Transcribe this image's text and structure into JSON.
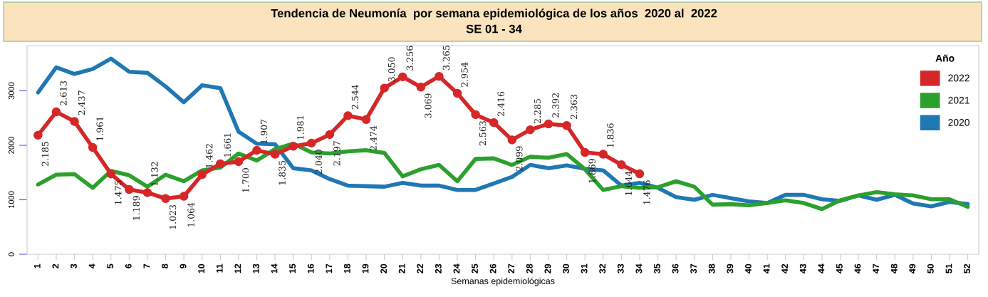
{
  "chart_data": {
    "type": "line",
    "title": "Tendencia de Neumonía  por semana epidemiológica de los años  2020 al  2022",
    "subtitle": "SE 01 - 34",
    "xlabel": "Semanas epidemiológicas",
    "legend_title": "Año",
    "legend": "top right",
    "grid": false,
    "line_style": "solid",
    "categories": [
      "1",
      "2",
      "3",
      "4",
      "5",
      "6",
      "7",
      "8",
      "9",
      "10",
      "11",
      "12",
      "13",
      "14",
      "15",
      "16",
      "17",
      "18",
      "19",
      "20",
      "21",
      "22",
      "23",
      "24",
      "25",
      "26",
      "27",
      "28",
      "29",
      "30",
      "31",
      "32",
      "33",
      "34",
      "35",
      "36",
      "37",
      "38",
      "39",
      "40",
      "41",
      "42",
      "43",
      "44",
      "45",
      "46",
      "47",
      "48",
      "49",
      "50",
      "51",
      "52"
    ],
    "ylim": [
      0,
      3830
    ],
    "yticks": [
      0,
      1000,
      2000,
      3000
    ],
    "series": [
      {
        "name": "2022",
        "color": "#d62728",
        "marker": "circle",
        "values": [
          2185,
          2613,
          2437,
          1961,
          1475,
          1189,
          1132,
          1023,
          1064,
          1462,
          1661,
          1700,
          1907,
          1835,
          1981,
          2040,
          2197,
          2544,
          2474,
          3050,
          3256,
          3069,
          3265,
          2954,
          2563,
          2416,
          2099,
          2285,
          2392,
          2363,
          1869,
          1836,
          1644,
          1476,
          null,
          null,
          null,
          null,
          null,
          null,
          null,
          null,
          null,
          null,
          null,
          null,
          null,
          null,
          null,
          null,
          null,
          null
        ],
        "value_labels": [
          "2.185",
          "2.613",
          "2.437",
          "1.961",
          "1.475",
          "1.189",
          "1.132",
          "1.023",
          "1.064",
          "1.462",
          "1.661",
          "1.700",
          "1.907",
          "1.835",
          "1.981",
          "2.040",
          "2.197",
          "2.544",
          "2.474",
          "3.050",
          "3.256",
          "3.069",
          "3.265",
          "2.954",
          "2.563",
          "2.416",
          "2.099",
          "2.285",
          "2.392",
          "2.363",
          "1.869",
          "1.836",
          "1.644",
          "1.476",
          null,
          null,
          null,
          null,
          null,
          null,
          null,
          null,
          null,
          null,
          null,
          null,
          null,
          null,
          null,
          null,
          null,
          null
        ]
      },
      {
        "name": "2021",
        "color": "#2ca02c",
        "marker": "none",
        "values": [
          1280,
          1460,
          1470,
          1220,
          1530,
          1450,
          1240,
          1460,
          1340,
          1540,
          1590,
          1850,
          1720,
          1930,
          2030,
          1870,
          1850,
          1890,
          1910,
          1860,
          1430,
          1560,
          1640,
          1340,
          1750,
          1760,
          1640,
          1790,
          1770,
          1840,
          1560,
          1180,
          1250,
          1220,
          1230,
          1340,
          1240,
          910,
          920,
          900,
          940,
          990,
          940,
          830,
          990,
          1080,
          1140,
          1100,
          1080,
          1010,
          1010,
          870
        ]
      },
      {
        "name": "2020",
        "color": "#1f77b4",
        "marker": "none",
        "values": [
          2970,
          3430,
          3310,
          3400,
          3590,
          3350,
          3330,
          3080,
          2790,
          3100,
          3050,
          2250,
          2030,
          2020,
          1580,
          1540,
          1380,
          1260,
          1250,
          1240,
          1310,
          1260,
          1260,
          1180,
          1180,
          1300,
          1420,
          1640,
          1580,
          1630,
          1570,
          1540,
          1260,
          1310,
          1220,
          1050,
          1000,
          1090,
          1030,
          970,
          940,
          1090,
          1090,
          1010,
          980,
          1080,
          1000,
          1090,
          930,
          880,
          960,
          920
        ]
      }
    ]
  }
}
